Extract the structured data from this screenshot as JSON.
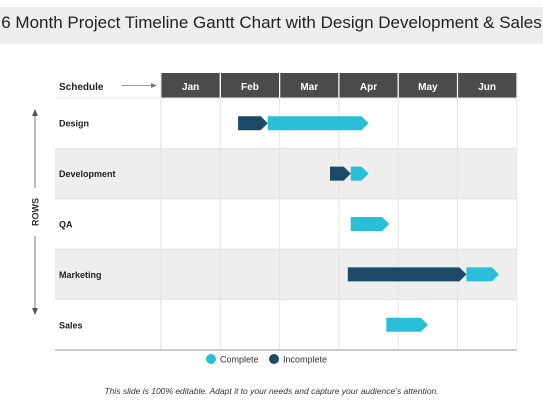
{
  "title": "6 Month Project Timeline Gantt Chart with Design Development & Sales",
  "footer": "This slide is 100% editable. Adapt it to your needs and capture your audience’s attention.",
  "colors": {
    "complete": "#29bfd6",
    "incomplete": "#1a4a66",
    "header": "#4b4b4b",
    "band": "#eeeeee"
  },
  "chart_data": {
    "type": "gantt",
    "header_label": "Schedule",
    "y_axis_label": "ROWS",
    "months": [
      "Jan",
      "Feb",
      "Mar",
      "Apr",
      "May",
      "Jun"
    ],
    "tasks": [
      {
        "label": "Design",
        "start": 1.3,
        "split": 1.8,
        "end": 3.5
      },
      {
        "label": "Development",
        "start": 2.85,
        "split": 3.2,
        "end": 3.5
      },
      {
        "label": "QA",
        "start": 3.2,
        "split": 3.2,
        "end": 3.85
      },
      {
        "label": "Marketing",
        "start": 3.15,
        "split": 5.15,
        "end": 5.7
      },
      {
        "label": "Sales",
        "start": 3.8,
        "split": 3.8,
        "end": 4.5
      }
    ],
    "legend": [
      {
        "label": "Complete",
        "color": "#29bfd6"
      },
      {
        "label": "Incomplete",
        "color": "#1a4a66"
      }
    ]
  }
}
